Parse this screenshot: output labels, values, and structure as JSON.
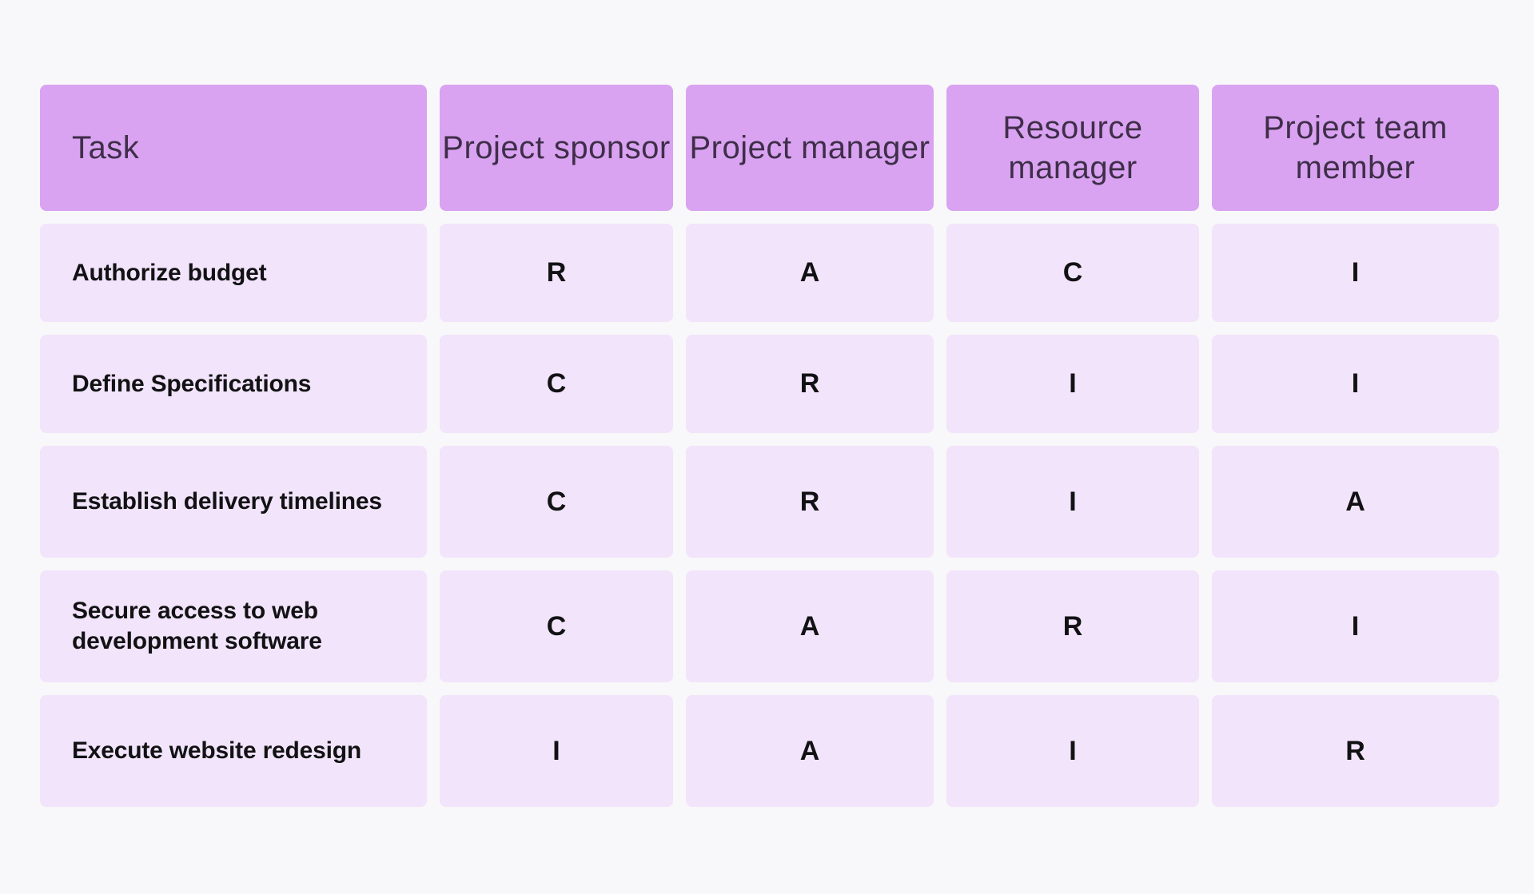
{
  "colors": {
    "page_bg": "#f8f7f9",
    "header_bg": "#d9a3f1",
    "header_text": "#3f2e49",
    "cell_bg": "#f2e4fb",
    "cell_text": "#121214"
  },
  "table": {
    "header": {
      "task_label": "Task",
      "roles": [
        "Project sponsor",
        "Project manager",
        "Resource manager",
        "Project team member"
      ]
    },
    "rows": [
      {
        "task": "Authorize budget",
        "cells": [
          "R",
          "A",
          "C",
          "I"
        ]
      },
      {
        "task": "Define Specifications",
        "cells": [
          "C",
          "R",
          "I",
          "I"
        ]
      },
      {
        "task": "Establish delivery timelines",
        "cells": [
          "C",
          "R",
          "I",
          "A"
        ]
      },
      {
        "task": "Secure access to web development software",
        "cells": [
          "C",
          "A",
          "R",
          "I"
        ]
      },
      {
        "task": "Execute website redesign",
        "cells": [
          "I",
          "A",
          "I",
          "R"
        ]
      }
    ]
  },
  "chart_data": {
    "type": "table",
    "title": "",
    "columns": [
      "Task",
      "Project sponsor",
      "Project manager",
      "Resource manager",
      "Project team member"
    ],
    "rows": [
      [
        "Authorize budget",
        "R",
        "A",
        "C",
        "I"
      ],
      [
        "Define Specifications",
        "C",
        "R",
        "I",
        "I"
      ],
      [
        "Establish delivery timelines",
        "C",
        "R",
        "I",
        "A"
      ],
      [
        "Secure access to web development software",
        "C",
        "A",
        "R",
        "I"
      ],
      [
        "Execute website redesign",
        "I",
        "A",
        "I",
        "R"
      ]
    ],
    "legend_hint": "RACI letters: R, A, C, I",
    "layout": {
      "header_fill": "#d9a3f1",
      "row_fill": "#f2e4fb",
      "grid": "off"
    }
  }
}
